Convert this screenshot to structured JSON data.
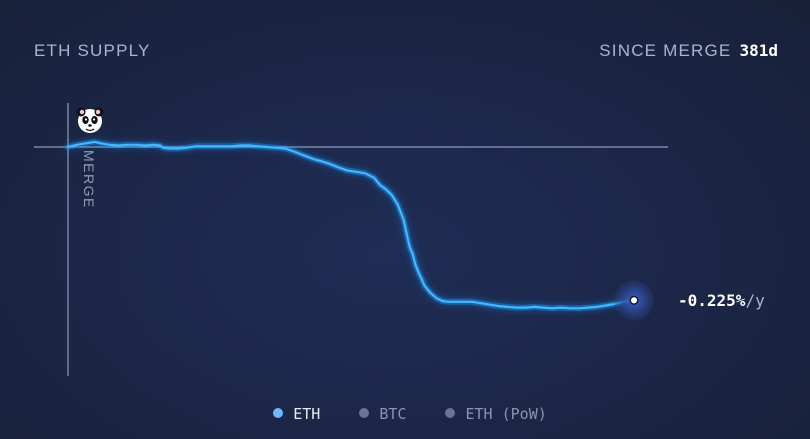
{
  "header": {
    "title": "ETH SUPPLY",
    "since_label": "SINCE MERGE",
    "since_value": "381d"
  },
  "chart_data": {
    "type": "line",
    "title": "ETH SUPPLY",
    "xlabel": "",
    "ylabel": "",
    "x_unit": "days since merge",
    "xlim": [
      0,
      381
    ],
    "ylim": [
      -0.24,
      0.02
    ],
    "baseline": 0,
    "annotations": [
      {
        "label": "MERGE",
        "x": 0
      },
      {
        "label": "-0.225%/y",
        "x": 381,
        "value_text": "-0.225%",
        "unit_text": "/y"
      }
    ],
    "series": [
      {
        "name": "ETH",
        "color": "#3fb5ff",
        "x": [
          0,
          6,
          12,
          18,
          22,
          28,
          34,
          40,
          46,
          52,
          58,
          62,
          64,
          68,
          74,
          80,
          86,
          92,
          98,
          104,
          110,
          116,
          122,
          128,
          134,
          140,
          146,
          152,
          158,
          162,
          166,
          170,
          176,
          182,
          188,
          194,
          200,
          206,
          210,
          214,
          218,
          222,
          226,
          228,
          230,
          232,
          234,
          236,
          238,
          240,
          244,
          248,
          252,
          256,
          260,
          266,
          272,
          278,
          284,
          290,
          296,
          302,
          308,
          314,
          320,
          326,
          332,
          338,
          344,
          350,
          356,
          362,
          368,
          374,
          381
        ],
        "values": [
          0,
          0.003,
          0.005,
          0.007,
          0.005,
          0.003,
          0.002,
          0.003,
          0.003,
          0.002,
          0.003,
          0.002,
          -0.001,
          -0.002,
          -0.002,
          -0.001,
          0.001,
          0.001,
          0.001,
          0.001,
          0.001,
          0.002,
          0.002,
          0.001,
          0.0,
          -0.001,
          -0.002,
          -0.006,
          -0.011,
          -0.014,
          -0.017,
          -0.019,
          -0.023,
          -0.028,
          -0.032,
          -0.034,
          -0.036,
          -0.042,
          -0.052,
          -0.058,
          -0.066,
          -0.079,
          -0.1,
          -0.119,
          -0.137,
          -0.147,
          -0.162,
          -0.172,
          -0.181,
          -0.19,
          -0.2,
          -0.207,
          -0.211,
          -0.212,
          -0.212,
          -0.212,
          -0.212,
          -0.214,
          -0.216,
          -0.218,
          -0.219,
          -0.22,
          -0.22,
          -0.219,
          -0.22,
          -0.221,
          -0.22,
          -0.221,
          -0.221,
          -0.22,
          -0.219,
          -0.217,
          -0.215,
          -0.212,
          -0.21
        ]
      }
    ],
    "legend": [
      {
        "name": "ETH",
        "color": "#6fb7ff",
        "active": true
      },
      {
        "name": "BTC",
        "color": "#6b7490",
        "active": false
      },
      {
        "name": "ETH (PoW)",
        "color": "#6b7490",
        "active": false
      }
    ],
    "grid": false,
    "legend_position": "bottom-center"
  },
  "annotations": {
    "merge_label": "MERGE",
    "end_value": "-0.225%",
    "end_unit": "/y"
  },
  "icons": {
    "merge_marker": "panda-icon"
  }
}
